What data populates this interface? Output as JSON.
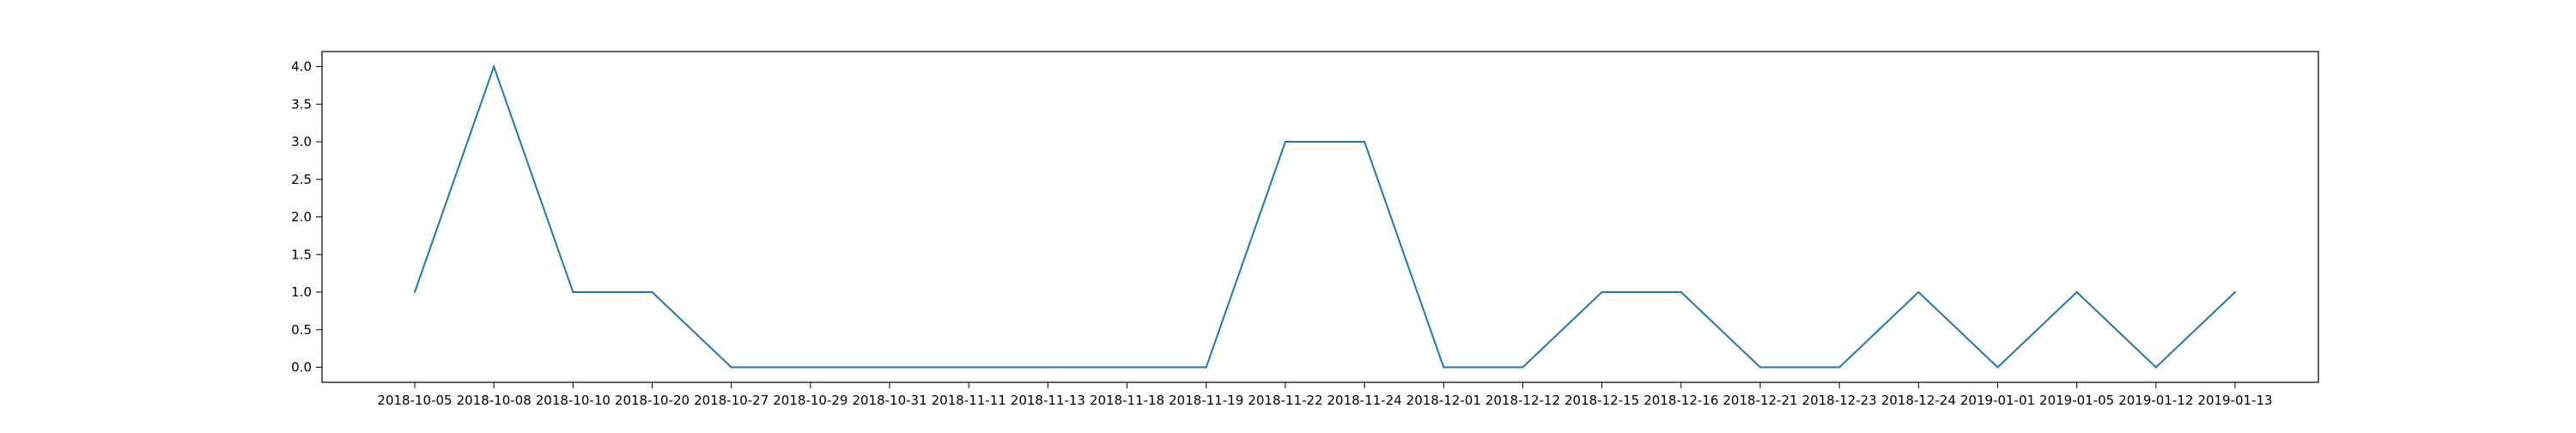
{
  "chart_data": {
    "type": "line",
    "categories": [
      "2018-10-05",
      "2018-10-08",
      "2018-10-10",
      "2018-10-20",
      "2018-10-27",
      "2018-10-29",
      "2018-10-31",
      "2018-11-11",
      "2018-11-13",
      "2018-11-18",
      "2018-11-19",
      "2018-11-22",
      "2018-11-24",
      "2018-12-01",
      "2018-12-12",
      "2018-12-15",
      "2018-12-16",
      "2018-12-21",
      "2018-12-23",
      "2018-12-24",
      "2019-01-01",
      "2019-01-05",
      "2019-01-12",
      "2019-01-13"
    ],
    "series": [
      {
        "values": [
          1,
          4,
          1,
          1,
          0,
          0,
          0,
          0,
          0,
          0,
          0,
          3,
          3,
          0,
          0,
          1,
          1,
          0,
          0,
          1,
          0,
          1,
          0,
          1
        ],
        "color": "#1f77b4"
      }
    ],
    "y_ticks": [
      "0.0",
      "0.5",
      "1.0",
      "1.5",
      "2.0",
      "2.5",
      "3.0",
      "3.5",
      "4.0"
    ],
    "title": "",
    "xlabel": "",
    "ylabel": "",
    "ylim": [
      -0.2,
      4.2
    ],
    "grid": false,
    "legend": "none"
  }
}
